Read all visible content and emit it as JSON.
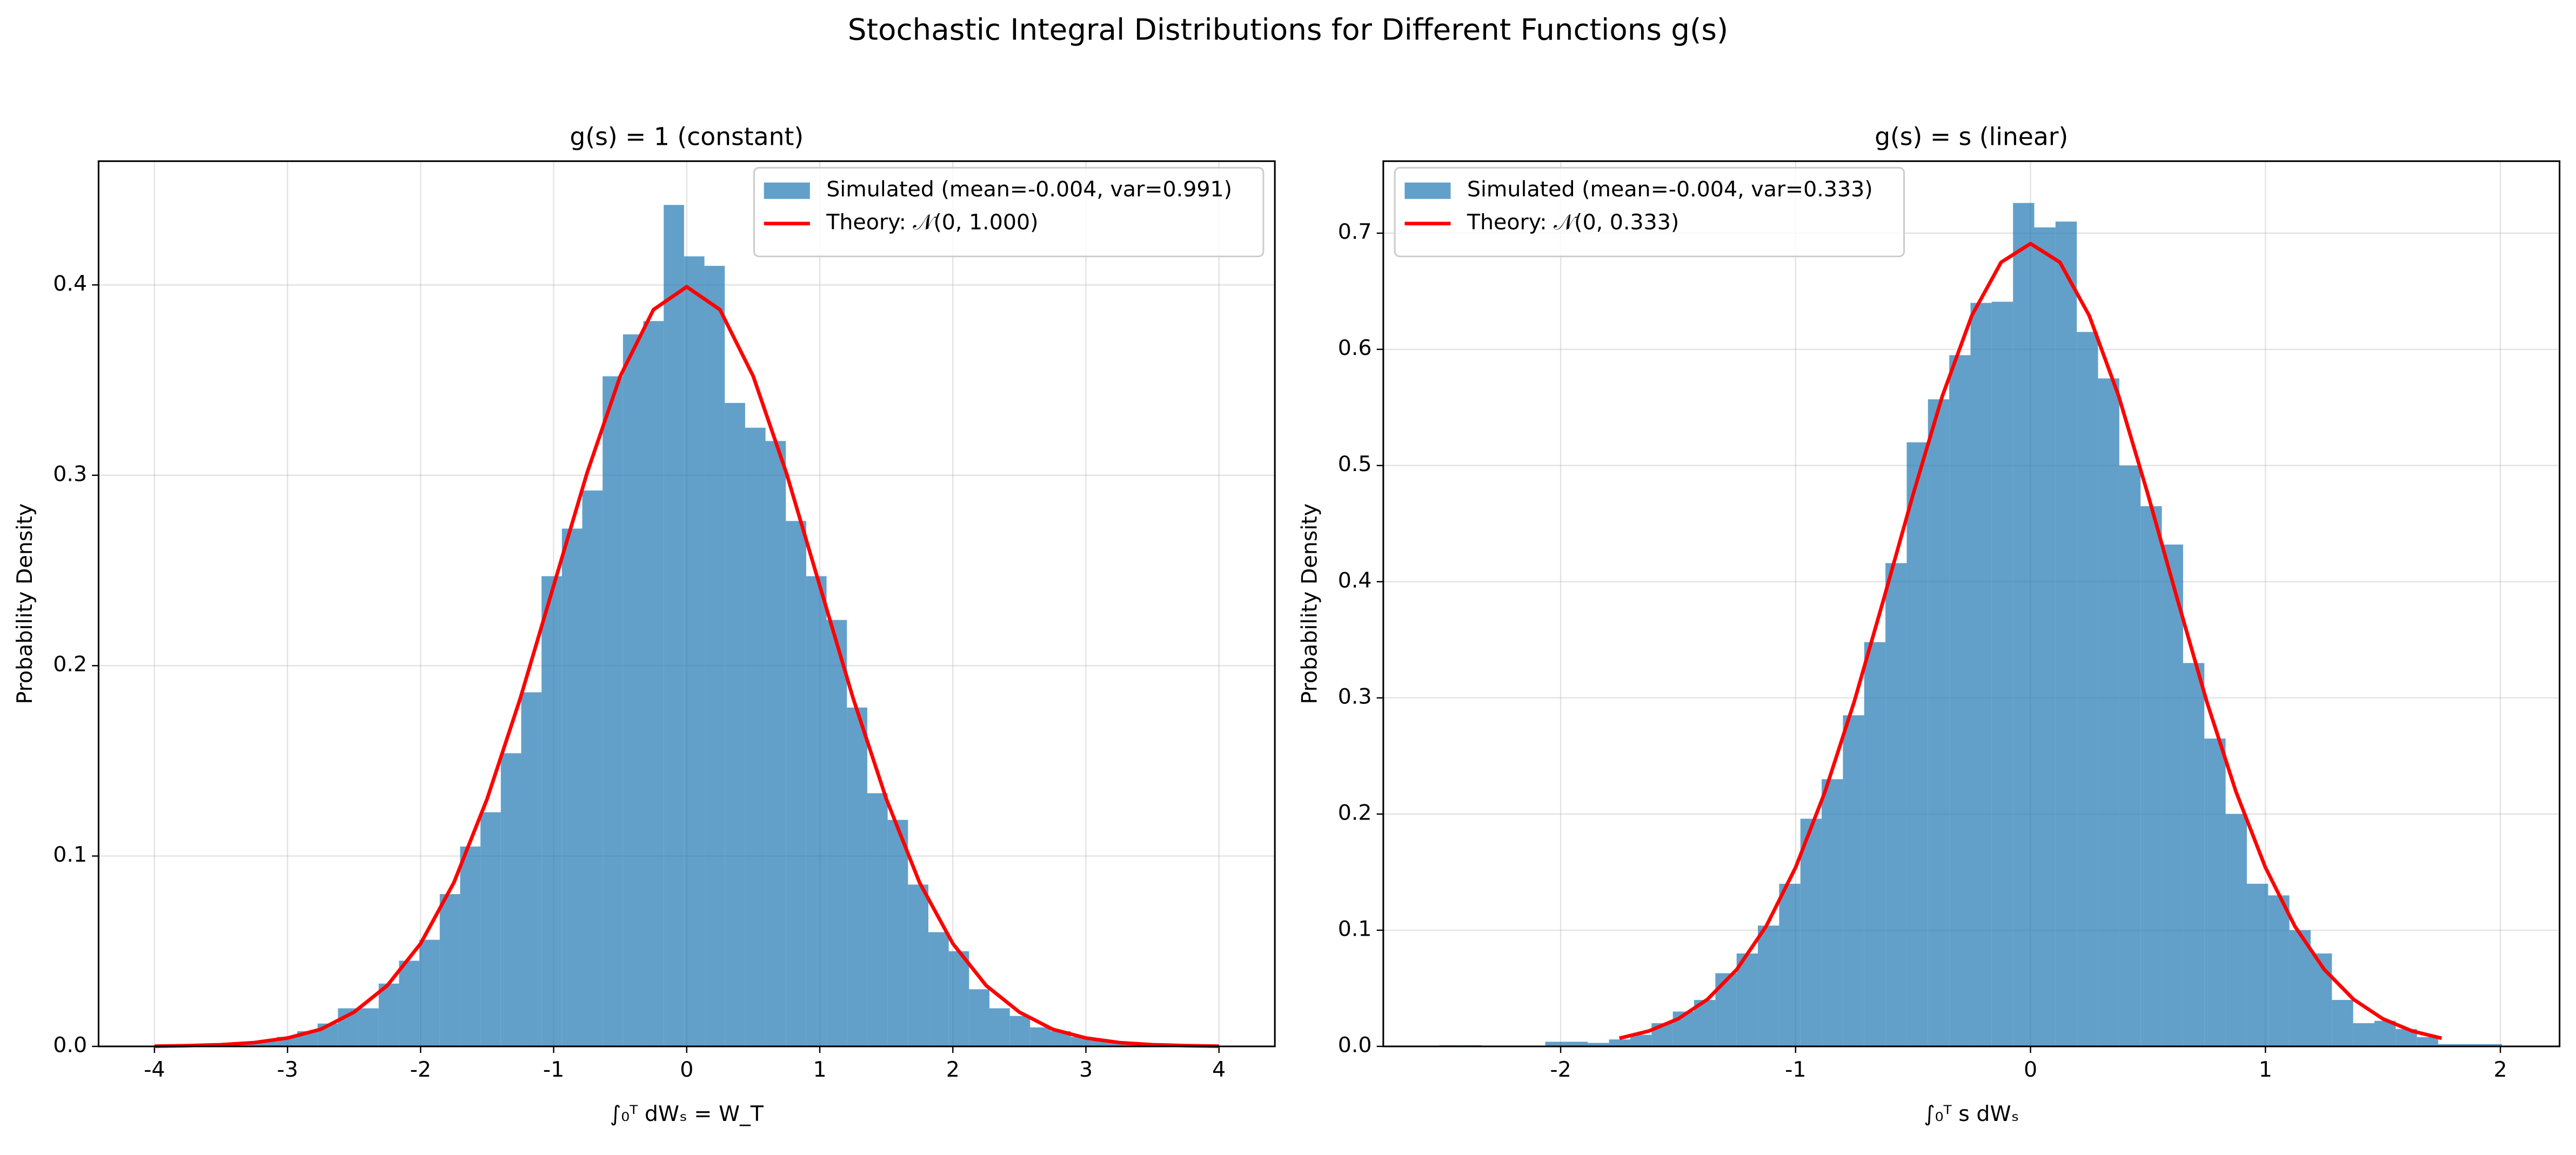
{
  "title": "Stochastic Integral Distributions for Different Functions g(s)",
  "chart_data": [
    {
      "type": "histogram",
      "title": "g(s) = 1 (constant)",
      "x_label": "∫₀ᵀ dWₛ = W_T",
      "y_label": "Probability Density",
      "xlim": [
        -4.42,
        4.42
      ],
      "ylim": [
        0,
        0.465
      ],
      "xticks": [
        -4,
        -3,
        -2,
        -1,
        0,
        1,
        2,
        3,
        4
      ],
      "yticks": [
        {
          "value": 0,
          "label": "0.0"
        },
        0.1,
        0.2,
        0.3,
        0.4
      ],
      "grid": true,
      "legend": "upper right",
      "series": [
        {
          "type": "histogram",
          "name": "Simulated (mean=-0.004, var=0.991)",
          "color": "#1f77b4",
          "bins": [
            -3.845,
            -3.692,
            -3.539,
            -3.386,
            -3.233,
            -3.08,
            -2.927,
            -2.774,
            -2.621,
            -2.468,
            -2.315,
            -2.162,
            -2.009,
            -1.856,
            -1.703,
            -1.55,
            -1.397,
            -1.244,
            -1.091,
            -0.938,
            -0.785,
            -0.632,
            -0.479,
            -0.326,
            -0.173,
            -0.02,
            0.133,
            0.286,
            0.439,
            0.592,
            0.745,
            0.898,
            1.051,
            1.204,
            1.357,
            1.51,
            1.663,
            1.816,
            1.969,
            2.122,
            2.275,
            2.428,
            2.581,
            2.734,
            2.887,
            3.04,
            3.193,
            3.346,
            3.499,
            3.652,
            3.805
          ],
          "values": [
            0.001,
            0.001,
            0.001,
            0.002,
            0.003,
            0.005,
            0.008,
            0.012,
            0.02,
            0.02,
            0.033,
            0.045,
            0.056,
            0.08,
            0.105,
            0.123,
            0.154,
            0.186,
            0.247,
            0.272,
            0.292,
            0.352,
            0.374,
            0.381,
            0.442,
            0.415,
            0.41,
            0.338,
            0.325,
            0.318,
            0.276,
            0.247,
            0.224,
            0.178,
            0.133,
            0.119,
            0.085,
            0.06,
            0.05,
            0.03,
            0.02,
            0.016,
            0.01,
            0.008,
            0.005,
            0.003,
            0.002,
            0.001,
            0.001,
            0.001
          ]
        },
        {
          "type": "line",
          "name": "Theory: 𝒩(0, 1.000)",
          "color": "#ff0000",
          "x": [
            -4,
            -3.75,
            -3.5,
            -3.25,
            -3,
            -2.75,
            -2.5,
            -2.25,
            -2,
            -1.75,
            -1.5,
            -1.25,
            -1,
            -0.75,
            -0.5,
            -0.25,
            0,
            0.25,
            0.5,
            0.75,
            1,
            1.25,
            1.5,
            1.75,
            2,
            2.25,
            2.5,
            2.75,
            3,
            3.25,
            3.5,
            3.75,
            4
          ],
          "values": [
            0.0001,
            0.0004,
            0.0009,
            0.002,
            0.0044,
            0.009,
            0.018,
            0.032,
            0.054,
            0.086,
            0.13,
            0.183,
            0.242,
            0.301,
            0.352,
            0.387,
            0.399,
            0.387,
            0.352,
            0.301,
            0.242,
            0.183,
            0.13,
            0.086,
            0.054,
            0.032,
            0.018,
            0.009,
            0.0044,
            0.002,
            0.0009,
            0.0004,
            0.0001
          ]
        }
      ]
    },
    {
      "type": "histogram",
      "title": "g(s) = s (linear)",
      "x_label": "∫₀ᵀ s dWₛ",
      "y_label": "Probability Density",
      "xlim": [
        -2.755,
        2.252
      ],
      "ylim": [
        0,
        0.762
      ],
      "xticks": [
        -2,
        -1,
        0,
        1,
        2
      ],
      "yticks": [
        {
          "value": 0,
          "label": "0.0"
        },
        0.1,
        0.2,
        0.3,
        0.4,
        0.5,
        0.6,
        0.7
      ],
      "grid": true,
      "legend": "upper left",
      "series": [
        {
          "type": "histogram",
          "name": "Simulated (mean=-0.004, var=0.333)",
          "color": "#1f77b4",
          "bins": [
            -2.518,
            -2.4275,
            -2.337,
            -2.2465,
            -2.156,
            -2.0655,
            -1.975,
            -1.8845,
            -1.794,
            -1.7035,
            -1.613,
            -1.5225,
            -1.432,
            -1.3415,
            -1.251,
            -1.1605,
            -1.07,
            -0.9795,
            -0.889,
            -0.7985,
            -0.708,
            -0.6175,
            -0.527,
            -0.4365,
            -0.346,
            -0.2555,
            -0.165,
            -0.0745,
            0.016,
            0.1065,
            0.197,
            0.2875,
            0.378,
            0.4685,
            0.559,
            0.6495,
            0.74,
            0.8305,
            0.921,
            1.0115,
            1.102,
            1.1925,
            1.283,
            1.3735,
            1.464,
            1.5545,
            1.645,
            1.7355,
            1.826,
            1.9165,
            2.007
          ],
          "values": [
            0.001,
            0.001,
            0,
            0,
            0,
            0.004,
            0.004,
            0.003,
            0.006,
            0.01,
            0.02,
            0.03,
            0.04,
            0.063,
            0.08,
            0.104,
            0.14,
            0.196,
            0.23,
            0.285,
            0.348,
            0.416,
            0.52,
            0.557,
            0.595,
            0.64,
            0.641,
            0.726,
            0.705,
            0.71,
            0.615,
            0.575,
            0.5,
            0.465,
            0.432,
            0.33,
            0.265,
            0.2,
            0.14,
            0.13,
            0.1,
            0.08,
            0.04,
            0.02,
            0.022,
            0.015,
            0.008,
            0.002,
            0.002,
            0.002
          ]
        },
        {
          "type": "line",
          "name": "Theory: 𝒩(0, 0.333)",
          "color": "#ff0000",
          "x": [
            -1.75,
            -1.625,
            -1.5,
            -1.375,
            -1.25,
            -1.125,
            -1,
            -0.875,
            -0.75,
            -0.625,
            -0.5,
            -0.375,
            -0.25,
            -0.125,
            0,
            0.125,
            0.25,
            0.375,
            0.5,
            0.625,
            0.75,
            0.875,
            1,
            1.125,
            1.25,
            1.375,
            1.5,
            1.625,
            1.75
          ],
          "values": [
            0.007,
            0.0132,
            0.0237,
            0.0405,
            0.0663,
            0.1035,
            0.154,
            0.219,
            0.297,
            0.385,
            0.475,
            0.56,
            0.629,
            0.675,
            0.691,
            0.675,
            0.629,
            0.56,
            0.475,
            0.385,
            0.297,
            0.219,
            0.154,
            0.1035,
            0.0663,
            0.0405,
            0.0237,
            0.0132,
            0.007
          ]
        }
      ]
    }
  ]
}
